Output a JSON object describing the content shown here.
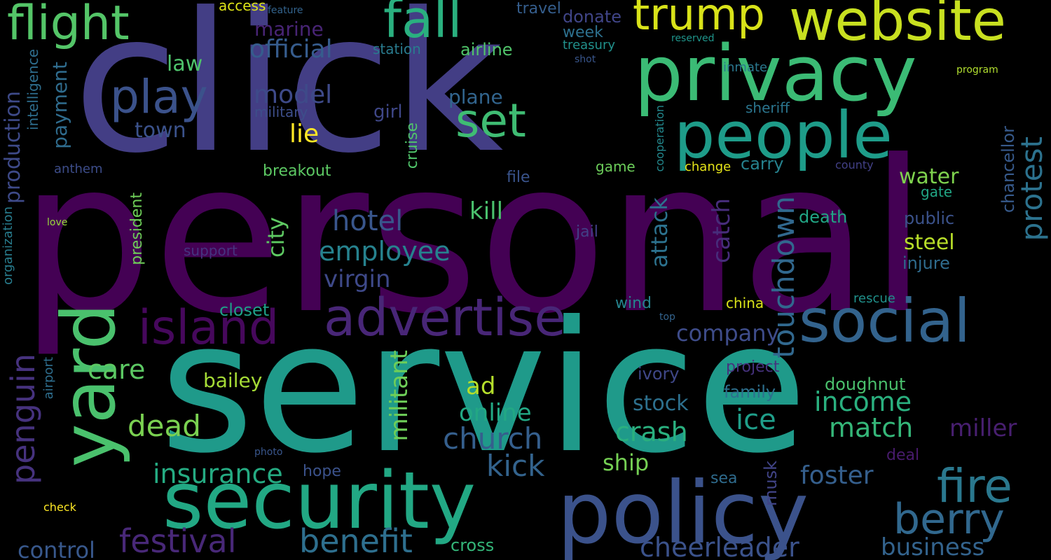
{
  "words": [
    {
      "id": "personal",
      "text": "personal",
      "color": "#440154"
    },
    {
      "id": "service",
      "text": "service",
      "color": "#1f9a8a"
    },
    {
      "id": "click",
      "text": "click",
      "color": "#433e85"
    },
    {
      "id": "privacy",
      "text": "privacy",
      "color": "#3bbb75"
    },
    {
      "id": "security",
      "text": "security",
      "color": "#22a884"
    },
    {
      "id": "policy",
      "text": "policy",
      "color": "#3b528b"
    },
    {
      "id": "people",
      "text": "people",
      "color": "#1e9c89"
    },
    {
      "id": "advertise",
      "text": "advertise",
      "color": "#482677"
    },
    {
      "id": "social",
      "text": "social",
      "color": "#33638d"
    },
    {
      "id": "yard",
      "text": "yard",
      "color": "#4ac16d"
    },
    {
      "id": "website",
      "text": "website",
      "color": "#c8e020"
    },
    {
      "id": "fall",
      "text": "fall",
      "color": "#2ab07f"
    },
    {
      "id": "flight",
      "text": "flight",
      "color": "#54c568"
    },
    {
      "id": "trump",
      "text": "trump",
      "color": "#d8e219"
    },
    {
      "id": "island",
      "text": "island",
      "color": "#46085c"
    },
    {
      "id": "play",
      "text": "play",
      "color": "#3b528b"
    },
    {
      "id": "set",
      "text": "set",
      "color": "#3fbc73"
    },
    {
      "id": "fire",
      "text": "fire",
      "color": "#2a788e"
    },
    {
      "id": "berry",
      "text": "berry",
      "color": "#31688e"
    },
    {
      "id": "festival",
      "text": "festival",
      "color": "#482878"
    },
    {
      "id": "benefit",
      "text": "benefit",
      "color": "#2e6f8e"
    },
    {
      "id": "penguin",
      "text": "penguin",
      "color": "#46327e"
    },
    {
      "id": "protest",
      "text": "protest",
      "color": "#2c728e"
    },
    {
      "id": "touchdown",
      "text": "touchdown",
      "color": "#31688e"
    },
    {
      "id": "church",
      "text": "church",
      "color": "#355f8d"
    },
    {
      "id": "insurance",
      "text": "insurance",
      "color": "#25ab82"
    },
    {
      "id": "cheerleader",
      "text": "cheerleader",
      "color": "#3b528b"
    },
    {
      "id": "employee",
      "text": "employee",
      "color": "#26828e"
    },
    {
      "id": "kick",
      "text": "kick",
      "color": "#33638d"
    },
    {
      "id": "income",
      "text": "income",
      "color": "#2ab07f"
    },
    {
      "id": "match",
      "text": "match",
      "color": "#35b779"
    },
    {
      "id": "dead",
      "text": "dead",
      "color": "#7ad151"
    },
    {
      "id": "crash",
      "text": "crash",
      "color": "#2ab07f"
    },
    {
      "id": "online",
      "text": "online",
      "color": "#22a884"
    },
    {
      "id": "ice",
      "text": "ice",
      "color": "#1f9e89"
    },
    {
      "id": "hotel",
      "text": "hotel",
      "color": "#39568c"
    },
    {
      "id": "official",
      "text": "official",
      "color": "#365c8d"
    },
    {
      "id": "model",
      "text": "model",
      "color": "#3e4a89"
    },
    {
      "id": "militant",
      "text": "militant",
      "color": "#6ece58"
    },
    {
      "id": "attack",
      "text": "attack",
      "color": "#2c728e"
    },
    {
      "id": "catch",
      "text": "catch",
      "color": "#472d7b"
    },
    {
      "id": "city",
      "text": "city",
      "color": "#5ec962"
    },
    {
      "id": "foster",
      "text": "foster",
      "color": "#355f8d"
    },
    {
      "id": "business",
      "text": "business",
      "color": "#33638d"
    },
    {
      "id": "control",
      "text": "control",
      "color": "#38588c"
    },
    {
      "id": "care",
      "text": "care",
      "color": "#5cc863"
    },
    {
      "id": "virgin",
      "text": "virgin",
      "color": "#3e4989"
    },
    {
      "id": "kill",
      "text": "kill",
      "color": "#4ac16d"
    },
    {
      "id": "ad",
      "text": "ad",
      "color": "#b5de2b"
    },
    {
      "id": "company",
      "text": "company",
      "color": "#3e4c8a"
    },
    {
      "id": "ship",
      "text": "ship",
      "color": "#75d054"
    },
    {
      "id": "stock",
      "text": "stock",
      "color": "#2d708e"
    },
    {
      "id": "miller",
      "text": "miller",
      "color": "#481f70"
    },
    {
      "id": "water",
      "text": "water",
      "color": "#7fd34e"
    },
    {
      "id": "steel",
      "text": "steel",
      "color": "#b8de29"
    },
    {
      "id": "bailey",
      "text": "bailey",
      "color": "#a5db36"
    },
    {
      "id": "production",
      "text": "production",
      "color": "#3e4a89"
    },
    {
      "id": "payment",
      "text": "payment",
      "color": "#2f6c8e"
    },
    {
      "id": "lie",
      "text": "lie",
      "color": "#fde725"
    },
    {
      "id": "law",
      "text": "law",
      "color": "#4ec36b"
    },
    {
      "id": "town",
      "text": "town",
      "color": "#3b528b"
    },
    {
      "id": "plane",
      "text": "plane",
      "color": "#32658e"
    },
    {
      "id": "marine",
      "text": "marine",
      "color": "#482475"
    },
    {
      "id": "airline",
      "text": "airline",
      "color": "#50c46a"
    },
    {
      "id": "week",
      "text": "week",
      "color": "#2d708e"
    },
    {
      "id": "donate",
      "text": "donate",
      "color": "#404588"
    },
    {
      "id": "travel",
      "text": "travel",
      "color": "#355e8d"
    },
    {
      "id": "station",
      "text": "station",
      "color": "#297b8e"
    },
    {
      "id": "access",
      "text": "access",
      "color": "#dde318"
    },
    {
      "id": "feature",
      "text": "feature",
      "color": "#33638d"
    },
    {
      "id": "reserved",
      "text": "reserved",
      "color": "#1f958b"
    },
    {
      "id": "treasury",
      "text": "treasury",
      "color": "#21918c"
    },
    {
      "id": "shot",
      "text": "shot",
      "color": "#39568c"
    },
    {
      "id": "inmate",
      "text": "inmate",
      "color": "#2a788e"
    },
    {
      "id": "program",
      "text": "program",
      "color": "#b0dd2f"
    },
    {
      "id": "sheriff",
      "text": "sheriff",
      "color": "#2b758e"
    },
    {
      "id": "girl",
      "text": "girl",
      "color": "#3f4788"
    },
    {
      "id": "military",
      "text": "military",
      "color": "#3d4e8a"
    },
    {
      "id": "intelligence",
      "text": "intelligence",
      "color": "#2e6e8e"
    },
    {
      "id": "anthem",
      "text": "anthem",
      "color": "#3d4d8a"
    },
    {
      "id": "organization",
      "text": "organization",
      "color": "#287d8e"
    },
    {
      "id": "cruise",
      "text": "cruise",
      "color": "#50c46a"
    },
    {
      "id": "cooperation",
      "text": "cooperation",
      "color": "#23898e"
    },
    {
      "id": "chancellor",
      "text": "chancellor",
      "color": "#375a8c"
    },
    {
      "id": "county",
      "text": "county",
      "color": "#424086"
    },
    {
      "id": "change",
      "text": "change",
      "color": "#e5e419"
    },
    {
      "id": "carry",
      "text": "carry",
      "color": "#26828e"
    },
    {
      "id": "gate",
      "text": "gate",
      "color": "#21a685"
    },
    {
      "id": "game",
      "text": "game",
      "color": "#6ccd5a"
    },
    {
      "id": "file",
      "text": "file",
      "color": "#3a548c"
    },
    {
      "id": "breakout",
      "text": "breakout",
      "color": "#5cc863"
    },
    {
      "id": "president",
      "text": "president",
      "color": "#6ece58"
    },
    {
      "id": "love",
      "text": "love",
      "color": "#9bd93c"
    },
    {
      "id": "support",
      "text": "support",
      "color": "#46337f"
    },
    {
      "id": "jail",
      "text": "jail",
      "color": "#424086"
    },
    {
      "id": "death",
      "text": "death",
      "color": "#21a685"
    },
    {
      "id": "public",
      "text": "public",
      "color": "#3b528b"
    },
    {
      "id": "injure",
      "text": "injure",
      "color": "#2f6c8e"
    },
    {
      "id": "closet",
      "text": "closet",
      "color": "#1fa088"
    },
    {
      "id": "wind",
      "text": "wind",
      "color": "#25848e"
    },
    {
      "id": "china",
      "text": "china",
      "color": "#dae319"
    },
    {
      "id": "top",
      "text": "top",
      "color": "#33638d"
    },
    {
      "id": "rescue",
      "text": "rescue",
      "color": "#20928c"
    },
    {
      "id": "ivory",
      "text": "ivory",
      "color": "#3f4788"
    },
    {
      "id": "project",
      "text": "project",
      "color": "#46327e"
    },
    {
      "id": "doughnut",
      "text": "doughnut",
      "color": "#4ac16d"
    },
    {
      "id": "family",
      "text": "family",
      "color": "#2d708e"
    },
    {
      "id": "airport",
      "text": "airport",
      "color": "#2e6e8e"
    },
    {
      "id": "musk",
      "text": "musk",
      "color": "#414487"
    },
    {
      "id": "sea",
      "text": "sea",
      "color": "#2f6c8e"
    },
    {
      "id": "deal",
      "text": "deal",
      "color": "#481b6d"
    },
    {
      "id": "hope",
      "text": "hope",
      "color": "#3b528b"
    },
    {
      "id": "photo",
      "text": "photo",
      "color": "#39568c"
    },
    {
      "id": "check",
      "text": "check",
      "color": "#fde725"
    },
    {
      "id": "cross",
      "text": "cross",
      "color": "#34b679"
    }
  ]
}
